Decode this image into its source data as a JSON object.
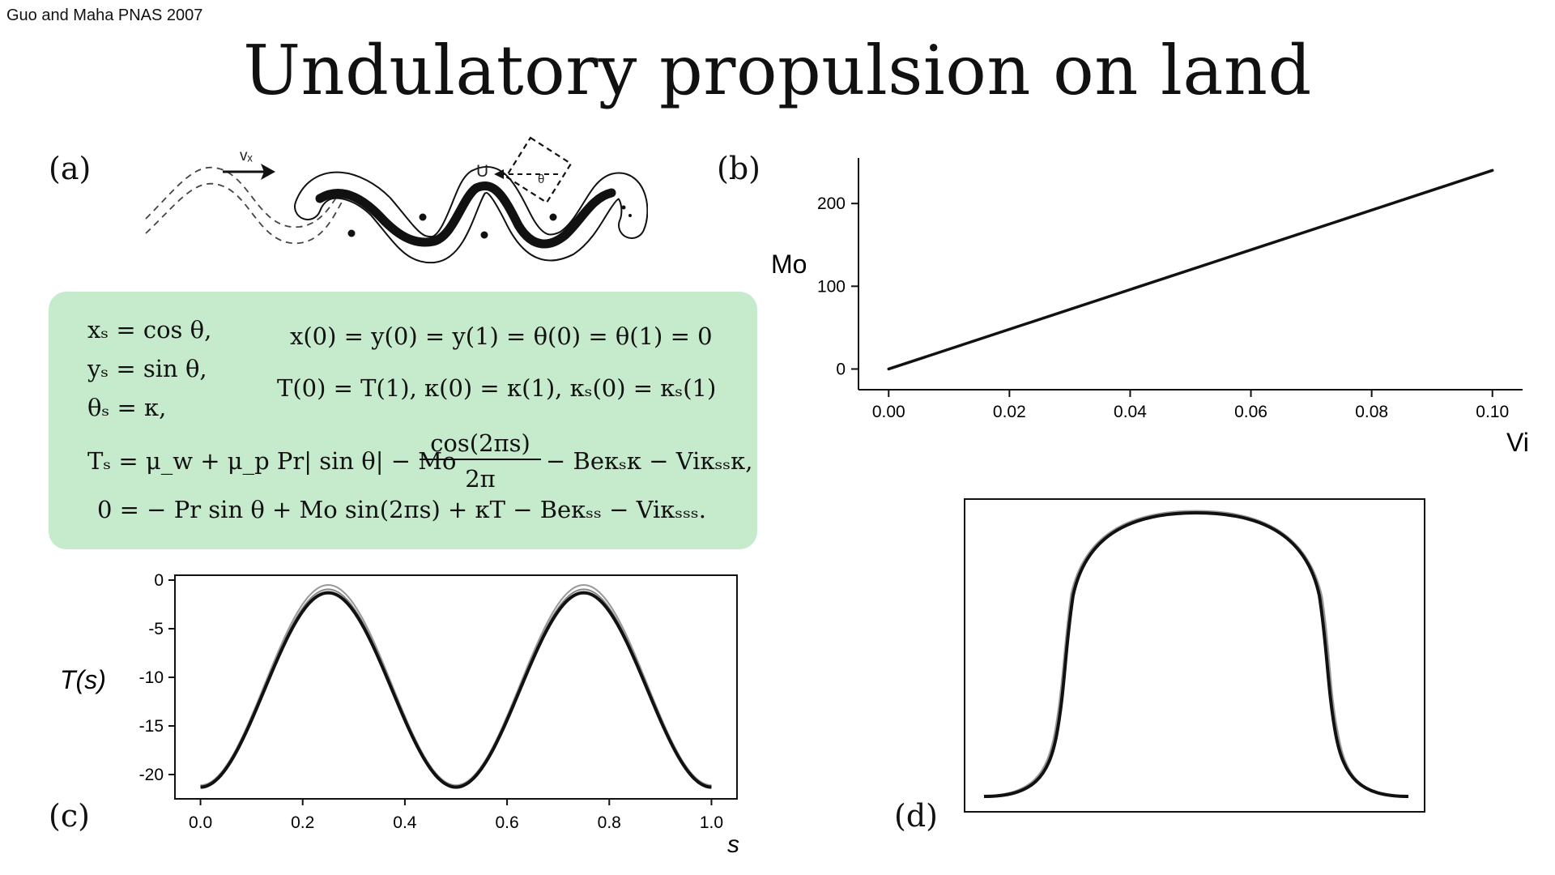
{
  "citation": "Guo and Maha PNAS 2007",
  "title": "Undulatory propulsion on land",
  "panels": {
    "a": "(a)",
    "b": "(b)",
    "c": "(c)",
    "d": "(d)"
  },
  "snake_figure": {
    "vx_label": "vₓ",
    "u_label": "U",
    "theta_label": "θ"
  },
  "equations": {
    "line1_left": "xₛ = cos θ,",
    "line2_left": "yₛ = sin θ,",
    "line3_left": "θₛ = κ,",
    "line1_right": "x(0) = y(0) = y(1) = θ(0) = θ(1) = 0",
    "line2_right": "T(0) = T(1), κ(0) = κ(1), κₛ(0) = κₛ(1)",
    "line4_a": "Tₛ = μ_w + μ_p Pr| sin θ| − Mo",
    "line4_num": "cos(2πs)",
    "line4_den": "2π",
    "line4_b": "− Beκₛκ − Viκₛₛκ,",
    "line5": "0 =  − Pr sin θ + Mo sin(2πs) + κT − Beκₛₛ − Viκₛₛₛ."
  },
  "chart_data": [
    {
      "panel": "b",
      "type": "line",
      "xlabel": "Vi",
      "ylabel": "Mo",
      "xlim": [
        -0.005,
        0.105
      ],
      "ylim": [
        -25,
        255
      ],
      "xticks": [
        "0.00",
        "0.02",
        "0.04",
        "0.06",
        "0.08",
        "0.10"
      ],
      "yticks": [
        "0",
        "100",
        "200"
      ],
      "x": [
        0.0,
        0.1
      ],
      "y": [
        0,
        240
      ],
      "color": "#111111"
    },
    {
      "panel": "c",
      "type": "line",
      "xlabel": "s",
      "ylabel": "T(s)",
      "xlim": [
        -0.05,
        1.05
      ],
      "ylim": [
        -22.5,
        0.5
      ],
      "xticks": [
        "0.0",
        "0.2",
        "0.4",
        "0.6",
        "0.8",
        "1.0"
      ],
      "yticks": [
        "0",
        "-5",
        "-10",
        "-15",
        "-20"
      ],
      "series_description": "periodic curve, period 0.5",
      "min": -21.3,
      "max": -1.3,
      "peaks_at": [
        0.25,
        0.75
      ],
      "troughs_at": [
        0.0,
        0.5,
        1.0
      ],
      "color": "#111111"
    },
    {
      "panel": "d",
      "type": "line",
      "axes": "none",
      "color": "#111111"
    }
  ]
}
